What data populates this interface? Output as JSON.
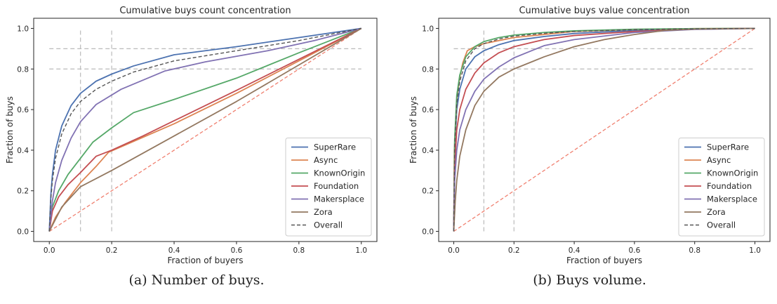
{
  "chart_data": [
    {
      "type": "line",
      "title": "Cumulative buys count concentration",
      "xlabel": "Fraction of buyers",
      "ylabel": "Fraction of buys",
      "xlim": [
        -0.05,
        1.05
      ],
      "ylim": [
        -0.05,
        1.05
      ],
      "xticks": [
        "0.0",
        "0.2",
        "0.4",
        "0.6",
        "0.8",
        "1.0"
      ],
      "yticks": [
        "0.0",
        "0.2",
        "0.4",
        "0.6",
        "0.8",
        "1.0"
      ],
      "grid": false,
      "legend": "lower-right",
      "reference_lines": {
        "vertical": [
          0.1,
          0.2
        ],
        "horizontal": [
          0.8,
          0.9
        ],
        "diagonal": true
      },
      "series": [
        {
          "name": "SuperRare",
          "color": "#4c72b0",
          "x": [
            0,
            0.005,
            0.01,
            0.02,
            0.04,
            0.07,
            0.1,
            0.15,
            0.2,
            0.27,
            0.4,
            0.6,
            0.8,
            1.0
          ],
          "y": [
            0,
            0.18,
            0.28,
            0.4,
            0.52,
            0.62,
            0.68,
            0.74,
            0.775,
            0.815,
            0.87,
            0.91,
            0.955,
            1.0
          ]
        },
        {
          "name": "Async",
          "color": "#dd8452",
          "x": [
            0,
            0.02,
            0.05,
            0.1,
            0.15,
            0.19,
            0.25,
            0.4,
            0.6,
            0.8,
            1.0
          ],
          "y": [
            0,
            0.07,
            0.14,
            0.24,
            0.32,
            0.39,
            0.43,
            0.53,
            0.68,
            0.84,
            1.0
          ]
        },
        {
          "name": "KnownOrigin",
          "color": "#55a868",
          "x": [
            0,
            0.01,
            0.03,
            0.06,
            0.1,
            0.14,
            0.2,
            0.27,
            0.4,
            0.6,
            0.8,
            1.0
          ],
          "y": [
            0,
            0.12,
            0.2,
            0.28,
            0.36,
            0.44,
            0.51,
            0.585,
            0.65,
            0.755,
            0.88,
            1.0
          ]
        },
        {
          "name": "Foundation",
          "color": "#c44e52",
          "x": [
            0,
            0.01,
            0.03,
            0.06,
            0.1,
            0.15,
            0.2,
            0.3,
            0.4,
            0.6,
            0.8,
            1.0
          ],
          "y": [
            0,
            0.1,
            0.17,
            0.23,
            0.29,
            0.37,
            0.4,
            0.47,
            0.545,
            0.695,
            0.848,
            1.0
          ]
        },
        {
          "name": "Makersplace",
          "color": "#8172b3",
          "x": [
            0,
            0.01,
            0.02,
            0.04,
            0.07,
            0.1,
            0.15,
            0.23,
            0.37,
            0.5,
            0.7,
            0.85,
            1.0
          ],
          "y": [
            0,
            0.15,
            0.24,
            0.35,
            0.46,
            0.54,
            0.625,
            0.7,
            0.79,
            0.835,
            0.89,
            0.94,
            1.0
          ]
        },
        {
          "name": "Zora",
          "color": "#937860",
          "x": [
            0,
            0.02,
            0.04,
            0.07,
            0.1,
            0.2,
            0.4,
            0.6,
            0.8,
            1.0
          ],
          "y": [
            0,
            0.06,
            0.12,
            0.17,
            0.22,
            0.3,
            0.47,
            0.64,
            0.82,
            1.0
          ]
        },
        {
          "name": "Overall",
          "color": "#555555",
          "dashed": true,
          "x": [
            0,
            0.005,
            0.01,
            0.02,
            0.04,
            0.07,
            0.1,
            0.15,
            0.2,
            0.27,
            0.4,
            0.6,
            0.8,
            1.0
          ],
          "y": [
            0,
            0.16,
            0.25,
            0.36,
            0.48,
            0.58,
            0.64,
            0.7,
            0.74,
            0.785,
            0.84,
            0.89,
            0.94,
            1.0
          ]
        }
      ]
    },
    {
      "type": "line",
      "title": "Cumulative buys value concentration",
      "xlabel": "Fraction of buyers",
      "ylabel": "Fraction of buys",
      "xlim": [
        -0.05,
        1.05
      ],
      "ylim": [
        -0.05,
        1.05
      ],
      "xticks": [
        "0.0",
        "0.2",
        "0.4",
        "0.6",
        "0.8",
        "1.0"
      ],
      "yticks": [
        "0.0",
        "0.2",
        "0.4",
        "0.6",
        "0.8",
        "1.0"
      ],
      "grid": false,
      "legend": "lower-right",
      "reference_lines": {
        "vertical": [
          0.1,
          0.2
        ],
        "horizontal": [
          0.8,
          0.9
        ],
        "diagonal": true
      },
      "series": [
        {
          "name": "SuperRare",
          "color": "#4c72b0",
          "x": [
            0,
            0.003,
            0.01,
            0.02,
            0.04,
            0.07,
            0.1,
            0.15,
            0.2,
            0.3,
            0.4,
            0.6,
            0.8,
            1.0
          ],
          "y": [
            0,
            0.4,
            0.6,
            0.7,
            0.8,
            0.86,
            0.89,
            0.92,
            0.94,
            0.96,
            0.975,
            0.99,
            0.998,
            1.0
          ]
        },
        {
          "name": "Async",
          "color": "#dd8452",
          "x": [
            0,
            0.002,
            0.01,
            0.02,
            0.03,
            0.045,
            0.07,
            0.1,
            0.2,
            0.4,
            0.6,
            0.8,
            1.0
          ],
          "y": [
            0,
            0.4,
            0.65,
            0.76,
            0.83,
            0.89,
            0.91,
            0.925,
            0.955,
            0.985,
            0.995,
            0.999,
            1.0
          ]
        },
        {
          "name": "KnownOrigin",
          "color": "#55a868",
          "x": [
            0,
            0.003,
            0.01,
            0.02,
            0.04,
            0.07,
            0.1,
            0.15,
            0.2,
            0.3,
            0.4,
            0.6,
            0.8,
            1.0
          ],
          "y": [
            0,
            0.45,
            0.67,
            0.77,
            0.86,
            0.91,
            0.935,
            0.955,
            0.967,
            0.98,
            0.988,
            0.996,
            0.999,
            1.0
          ]
        },
        {
          "name": "Foundation",
          "color": "#c44e52",
          "x": [
            0,
            0.003,
            0.01,
            0.02,
            0.04,
            0.07,
            0.1,
            0.15,
            0.2,
            0.3,
            0.4,
            0.6,
            0.8,
            1.0
          ],
          "y": [
            0,
            0.32,
            0.5,
            0.6,
            0.7,
            0.78,
            0.83,
            0.88,
            0.91,
            0.945,
            0.965,
            0.985,
            0.996,
            1.0
          ]
        },
        {
          "name": "Makersplace",
          "color": "#8172b3",
          "x": [
            0,
            0.003,
            0.01,
            0.02,
            0.04,
            0.07,
            0.1,
            0.15,
            0.2,
            0.3,
            0.4,
            0.6,
            0.8,
            1.0
          ],
          "y": [
            0,
            0.25,
            0.4,
            0.5,
            0.6,
            0.69,
            0.75,
            0.81,
            0.855,
            0.915,
            0.945,
            0.98,
            0.995,
            1.0
          ]
        },
        {
          "name": "Zora",
          "color": "#937860",
          "x": [
            0,
            0.005,
            0.01,
            0.02,
            0.04,
            0.07,
            0.1,
            0.15,
            0.2,
            0.3,
            0.4,
            0.5,
            0.6,
            0.7,
            0.8,
            1.0
          ],
          "y": [
            0,
            0.15,
            0.25,
            0.37,
            0.5,
            0.62,
            0.69,
            0.76,
            0.8,
            0.86,
            0.91,
            0.945,
            0.97,
            0.99,
            0.997,
            1.0
          ]
        },
        {
          "name": "Overall",
          "color": "#555555",
          "dashed": true,
          "x": [
            0,
            0.003,
            0.01,
            0.02,
            0.04,
            0.07,
            0.1,
            0.15,
            0.2,
            0.3,
            0.4,
            0.6,
            0.8,
            1.0
          ],
          "y": [
            0,
            0.42,
            0.63,
            0.74,
            0.84,
            0.9,
            0.925,
            0.948,
            0.962,
            0.976,
            0.985,
            0.994,
            0.998,
            1.0
          ]
        }
      ]
    }
  ],
  "captions": {
    "a": "(a) Number of buys.",
    "b": "(b) Buys volume."
  },
  "colors": {
    "reference_dash": "#bbbbbb",
    "diagonal": "#f08070"
  }
}
